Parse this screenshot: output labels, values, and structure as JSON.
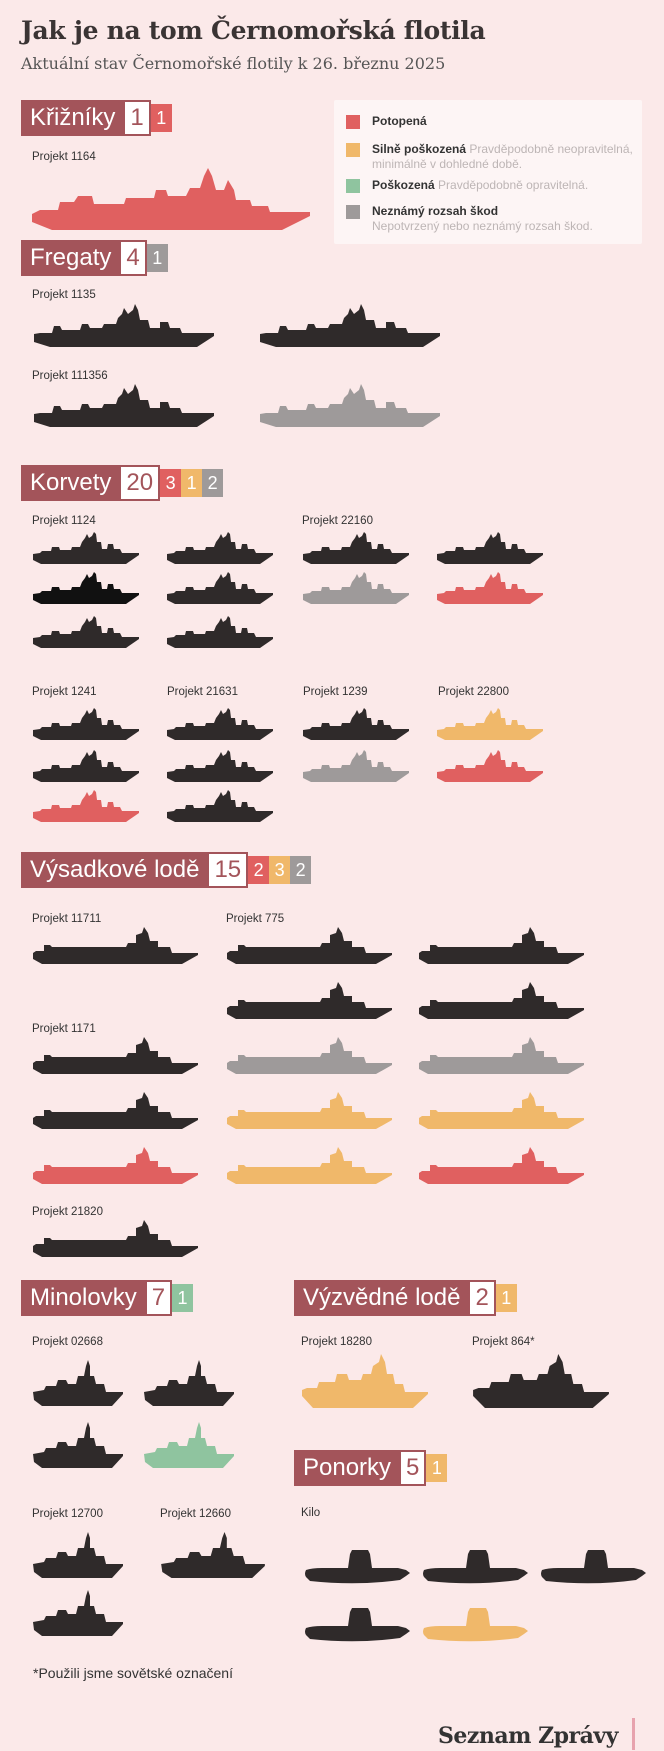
{
  "title": "Jak je na tom Černomořská flotila",
  "subtitle": "Aktuální stav Černomořské flotily k 26. březnu 2025",
  "colors": {
    "sunk": "#e06060",
    "heavily_damaged": "#f0b86a",
    "damaged": "#8fc49f",
    "unknown": "#9e9a9a",
    "intact": "#2f2a2a",
    "section": "#a3545a"
  },
  "legend": {
    "sunk": {
      "label": "Potopená",
      "desc": ""
    },
    "heavy": {
      "label": "Silně poškozená",
      "desc": "Pravděpodobně neopravitelná, minimálně v dohledné době."
    },
    "damaged": {
      "label": "Poškozená",
      "desc": "Pravděpodobně opravitelná."
    },
    "unknown": {
      "label": "Neznámý rozsah škod",
      "desc": "Nepotvrzený nebo neznámý rozsah škod."
    }
  },
  "sections": {
    "cruisers": {
      "name": "Křižníky",
      "total": "1",
      "sunk": "1"
    },
    "frigates": {
      "name": "Fregaty",
      "total": "4",
      "unknown": "1"
    },
    "corvettes": {
      "name": "Korvety",
      "total": "20",
      "sunk": "3",
      "heavy": "1",
      "unknown": "2"
    },
    "landing": {
      "name": "Výsadkové lodě",
      "total": "15",
      "sunk": "2",
      "heavy": "3",
      "unknown": "2"
    },
    "minesweepers": {
      "name": "Minolovky",
      "total": "7",
      "damaged": "1"
    },
    "recon": {
      "name": "Výzvědné lodě",
      "total": "2",
      "heavy": "1"
    },
    "submarines": {
      "name": "Ponorky",
      "total": "5",
      "heavy": "1"
    }
  },
  "projects": {
    "p1164": "Projekt 1164",
    "p1135": "Projekt 1135",
    "p111356": "Projekt 111356",
    "p1124": "Projekt 1124",
    "p22160": "Projekt 22160",
    "p1241": "Projekt 1241",
    "p21631": "Projekt 21631",
    "p1239": "Projekt 1239",
    "p22800": "Projekt 22800",
    "p11711": "Projekt 11711",
    "p775": "Projekt 775",
    "p1171": "Projekt 1171",
    "p21820": "Projekt 21820",
    "p02668": "Projekt 02668",
    "p12700": "Projekt 12700",
    "p12660": "Projekt 12660",
    "p18280": "Projekt 18280",
    "p864": "Projekt 864*",
    "kilo": "Kilo"
  },
  "footnote": "*Použili jsme sovětské označení",
  "brand": "Seznam Zprávy"
}
